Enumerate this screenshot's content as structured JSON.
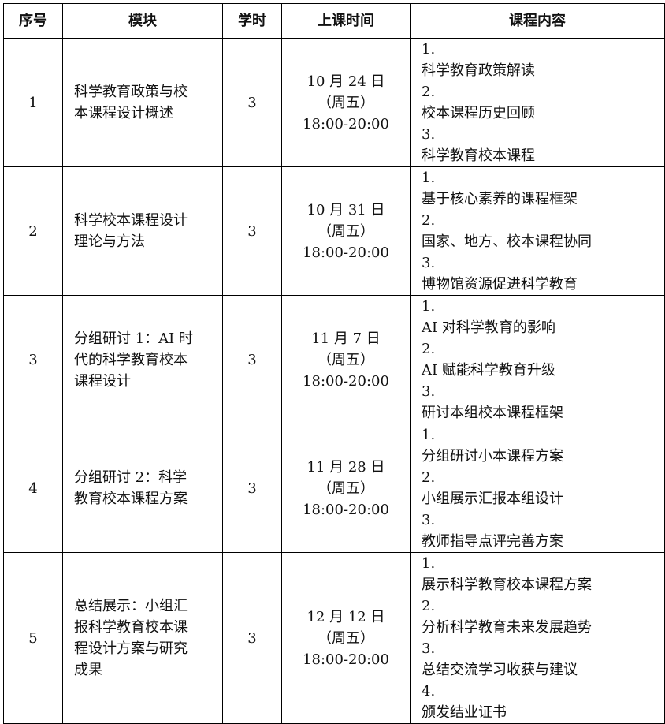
{
  "headers": [
    "序号",
    "模块",
    "学时",
    "上课时间",
    "课程内容"
  ],
  "rows": [
    {
      "no": "1",
      "module": [
        "科学教育政策与校",
        "本课程设计概述"
      ],
      "hours": "3",
      "time": [
        "10 月 24 日",
        "（周五）",
        "18:00-20:00"
      ],
      "content": [
        [
          "1.",
          "科学教育政策解读"
        ],
        [
          "2.",
          "校本课程历史回顾"
        ],
        [
          "3.",
          "科学教育校本课程"
        ]
      ]
    },
    {
      "no": "2",
      "module": [
        "科学校本课程设计",
        "理论与方法"
      ],
      "hours": "3",
      "time": [
        "10 月 31 日",
        "（周五）",
        "18:00-20:00"
      ],
      "content": [
        [
          "1.",
          "基于核心素养的课程框架"
        ],
        [
          "2.",
          "国家、地方、校本课程协同"
        ],
        [
          "3.",
          "博物馆资源促进科学教育"
        ]
      ]
    },
    {
      "no": "3",
      "module": [
        "分组研讨 1：AI 时",
        "代的科学教育校本",
        "课程设计"
      ],
      "hours": "3",
      "time": [
        "11 月 7 日",
        "（周五）",
        "18:00-20:00"
      ],
      "content": [
        [
          "1.",
          "AI 对科学教育的影响"
        ],
        [
          "2.",
          "AI 赋能科学教育升级"
        ],
        [
          "3.",
          "研讨本组校本课程框架"
        ]
      ]
    },
    {
      "no": "4",
      "module": [
        "分组研讨 2：科学",
        "教育校本课程方案"
      ],
      "hours": "3",
      "time": [
        "11 月 28 日",
        "（周五）",
        "18:00-20:00"
      ],
      "content": [
        [
          "1.",
          "分组研讨小本课程方案"
        ],
        [
          "2.",
          "小组展示汇报本组设计"
        ],
        [
          "3.",
          "教师指导点评完善方案"
        ]
      ]
    },
    {
      "no": "5",
      "module": [
        "总结展示：小组汇",
        "报科学教育校本课",
        "程设计方案与研究",
        "成果"
      ],
      "hours": "3",
      "time": [
        "12 月 12 日",
        "（周五）",
        "18:00-20:00"
      ],
      "content": [
        [
          "1.",
          "展示科学教育校本课程方案"
        ],
        [
          "2.",
          "分析科学教育未来发展趋势"
        ],
        [
          "3.",
          "总结交流学习收获与建议"
        ],
        [
          "4.",
          "颁发结业证书"
        ]
      ]
    }
  ]
}
